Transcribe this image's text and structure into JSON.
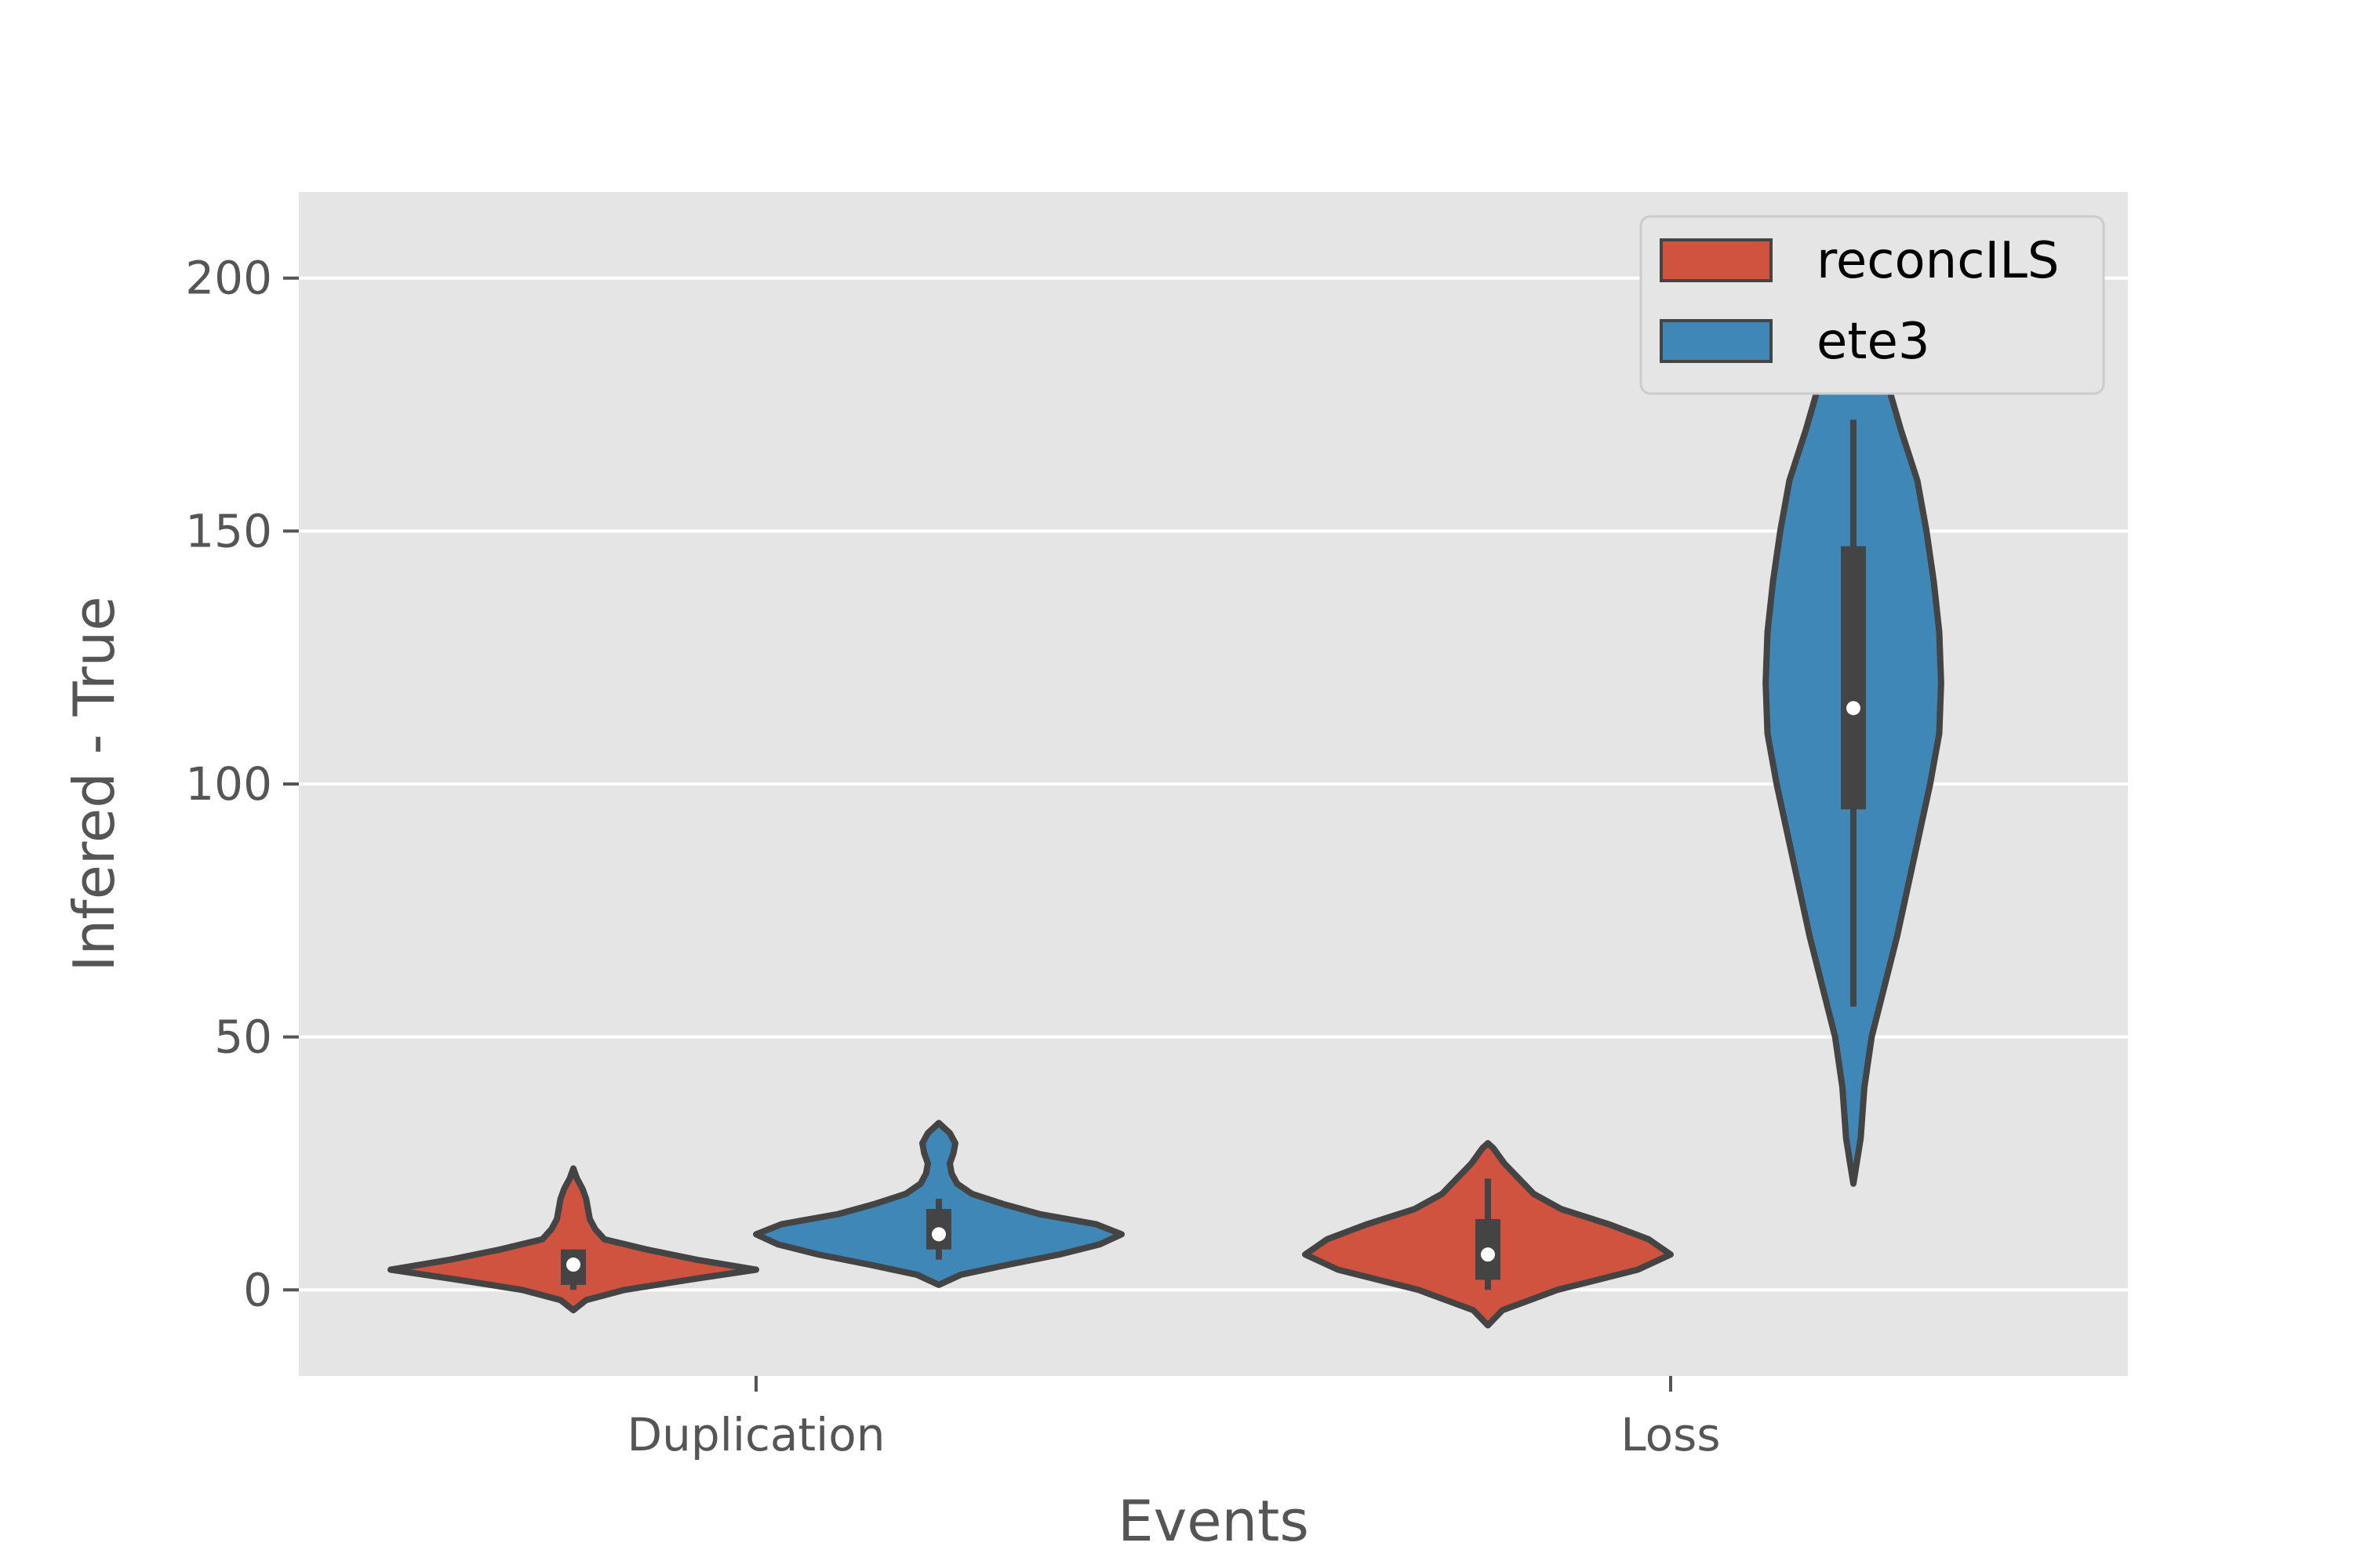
{
  "chart_data": {
    "type": "violin",
    "xlabel": "Events",
    "ylabel": "Infered - True",
    "categories": [
      "Duplication",
      "Loss"
    ],
    "ylim": [
      -17,
      217
    ],
    "yticks": [
      0,
      50,
      100,
      150,
      200
    ],
    "grid": true,
    "legend_position": "top-right",
    "series": [
      {
        "name": "reconcILS",
        "color": "#d0533f",
        "violins": [
          {
            "category": "Duplication",
            "median": 5,
            "q1": 1,
            "q3": 8,
            "whisker_low": 0,
            "whisker_high": 8,
            "density": [
              [
                -4,
                0.0
              ],
              [
                -2,
                0.07
              ],
              [
                0,
                0.28
              ],
              [
                2,
                0.63
              ],
              [
                4,
                1.0
              ],
              [
                6,
                0.67
              ],
              [
                8,
                0.4
              ],
              [
                10,
                0.17
              ],
              [
                12,
                0.12
              ],
              [
                14,
                0.09
              ],
              [
                16,
                0.08
              ],
              [
                18,
                0.07
              ],
              [
                20,
                0.05
              ],
              [
                22,
                0.02
              ],
              [
                24,
                0.0
              ]
            ]
          },
          {
            "category": "Loss",
            "median": 7,
            "q1": 2,
            "q3": 14,
            "whisker_low": 0,
            "whisker_high": 22,
            "density": [
              [
                -7,
                0.0
              ],
              [
                -4,
                0.08
              ],
              [
                0,
                0.38
              ],
              [
                4,
                0.82
              ],
              [
                7,
                1.0
              ],
              [
                10,
                0.88
              ],
              [
                13,
                0.66
              ],
              [
                16,
                0.4
              ],
              [
                19,
                0.25
              ],
              [
                22,
                0.17
              ],
              [
                25,
                0.09
              ],
              [
                28,
                0.03
              ],
              [
                29,
                0.0
              ]
            ]
          }
        ]
      },
      {
        "name": "ete3",
        "color": "#3e87b7",
        "violins": [
          {
            "category": "Duplication",
            "median": 11,
            "q1": 8,
            "q3": 16,
            "whisker_low": 6,
            "whisker_high": 18,
            "density": [
              [
                1,
                0.0
              ],
              [
                3,
                0.12
              ],
              [
                5,
                0.38
              ],
              [
                7,
                0.66
              ],
              [
                9,
                0.88
              ],
              [
                11,
                1.0
              ],
              [
                13,
                0.86
              ],
              [
                15,
                0.55
              ],
              [
                17,
                0.35
              ],
              [
                19,
                0.18
              ],
              [
                21,
                0.1
              ],
              [
                23,
                0.07
              ],
              [
                25,
                0.06
              ],
              [
                27,
                0.08
              ],
              [
                29,
                0.09
              ],
              [
                31,
                0.06
              ],
              [
                33,
                0.0
              ]
            ]
          },
          {
            "category": "Loss",
            "median": 115,
            "q1": 95,
            "q3": 147,
            "whisker_low": 56,
            "whisker_high": 172,
            "density": [
              [
                21,
                0.0
              ],
              [
                30,
                0.04
              ],
              [
                40,
                0.06
              ],
              [
                50,
                0.1
              ],
              [
                60,
                0.17
              ],
              [
                70,
                0.24
              ],
              [
                80,
                0.3
              ],
              [
                90,
                0.36
              ],
              [
                100,
                0.42
              ],
              [
                110,
                0.47
              ],
              [
                120,
                0.48
              ],
              [
                130,
                0.47
              ],
              [
                140,
                0.44
              ],
              [
                150,
                0.4
              ],
              [
                160,
                0.35
              ],
              [
                170,
                0.26
              ],
              [
                180,
                0.18
              ],
              [
                190,
                0.12
              ],
              [
                200,
                0.07
              ],
              [
                207,
                0.0
              ]
            ]
          }
        ]
      }
    ]
  }
}
